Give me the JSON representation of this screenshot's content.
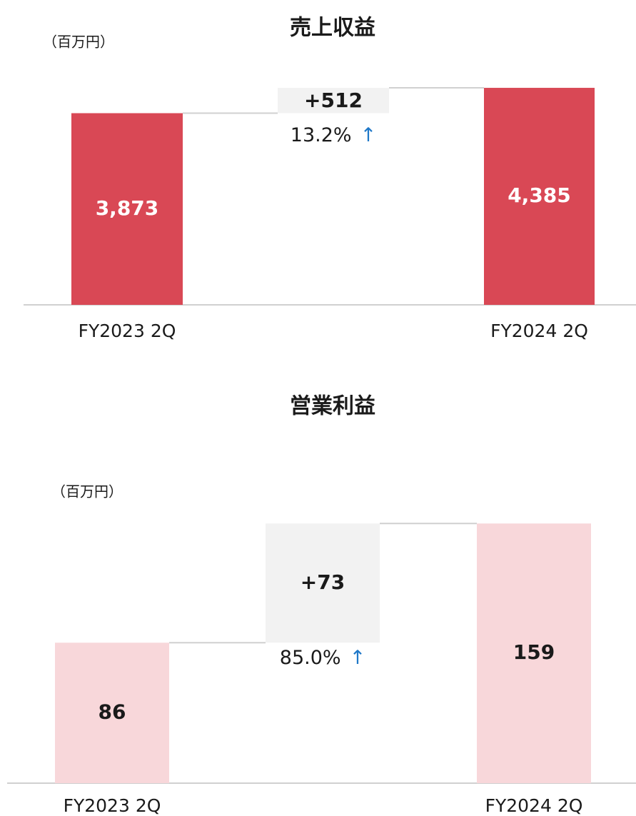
{
  "chart_data": [
    {
      "type": "waterfall",
      "title": "売上収益",
      "unit_label": "（百万円）",
      "categories": [
        "FY2023 2Q",
        null,
        "FY2024 2Q"
      ],
      "values": [
        3873,
        512,
        4385
      ],
      "value_labels": [
        "3,873",
        "+512",
        "4,385"
      ],
      "change_label": "13.2%",
      "change_arrow": "↑",
      "colors": [
        "#d94855",
        "#f2f2f2",
        "#d94855"
      ],
      "value_label_colors": [
        "#ffffff",
        "#1a1a1a",
        "#ffffff"
      ],
      "ylim": [
        0,
        4400
      ]
    },
    {
      "type": "waterfall",
      "title": "営業利益",
      "unit_label": "（百万円）",
      "categories": [
        "FY2023 2Q",
        null,
        "FY2024 2Q"
      ],
      "values": [
        86,
        73,
        159
      ],
      "value_labels": [
        "86",
        "+73",
        "159"
      ],
      "change_label": "85.0%",
      "change_arrow": "↑",
      "colors": [
        "#f8d7da",
        "#f2f2f2",
        "#f8d7da"
      ],
      "value_label_colors": [
        "#1a1a1a",
        "#1a1a1a",
        "#1a1a1a"
      ],
      "ylim": [
        0,
        160
      ]
    }
  ]
}
